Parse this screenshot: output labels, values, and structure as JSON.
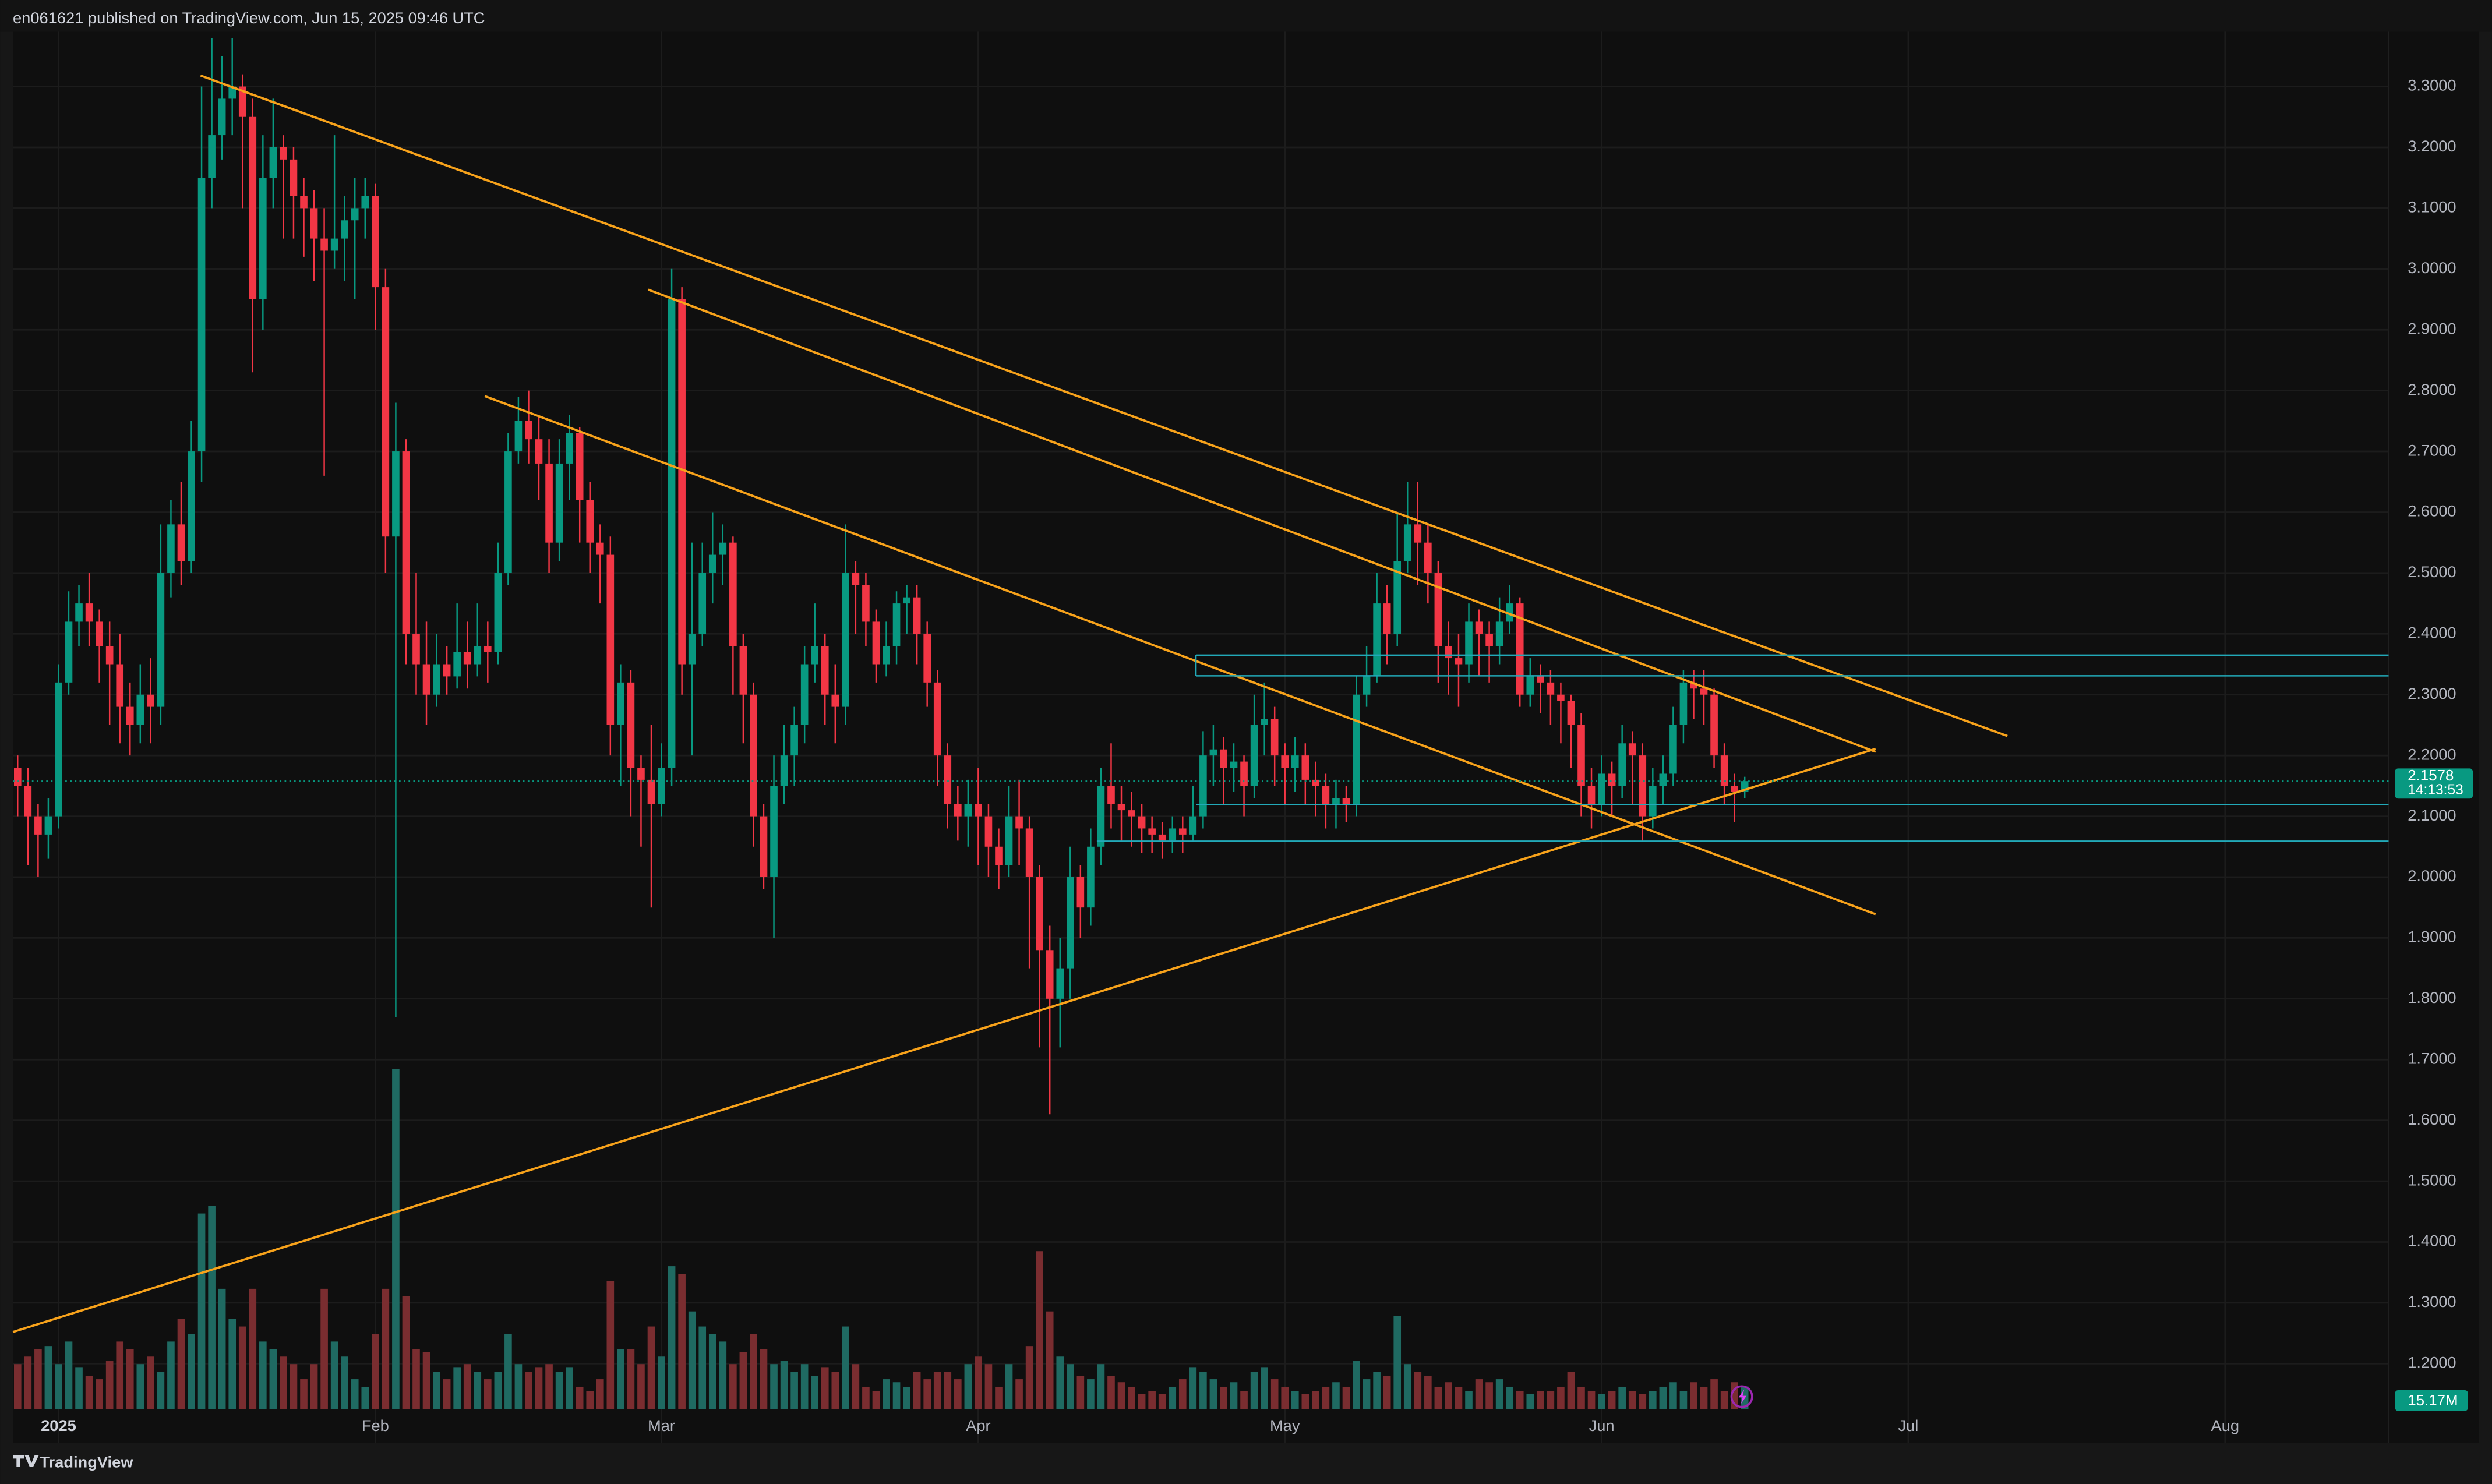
{
  "header": {
    "text": "en061621 published on TradingView.com, Jun 15, 2025 09:46 UTC"
  },
  "footer": {
    "brand": "TradingView"
  },
  "chart_data": {
    "type": "candlestick",
    "grid": true,
    "up_color": "#089981",
    "down_color": "#f23645",
    "xlim": [
      -0.47,
      232
    ],
    "ylim": [
      1.07,
      3.39
    ],
    "xticks": [
      {
        "value": 4,
        "label": "2025"
      },
      {
        "value": 35,
        "label": "Feb"
      },
      {
        "value": 63,
        "label": "Mar"
      },
      {
        "value": 94,
        "label": "Apr"
      },
      {
        "value": 124,
        "label": "May"
      },
      {
        "value": 155,
        "label": "Jun"
      },
      {
        "value": 185,
        "label": "Jul"
      },
      {
        "value": 216,
        "label": "Aug"
      }
    ],
    "yticks": [
      {
        "value": 1.2,
        "label": "1.2000"
      },
      {
        "value": 1.3,
        "label": "1.3000"
      },
      {
        "value": 1.4,
        "label": "1.4000"
      },
      {
        "value": 1.5,
        "label": "1.5000"
      },
      {
        "value": 1.6,
        "label": "1.6000"
      },
      {
        "value": 1.7,
        "label": "1.7000"
      },
      {
        "value": 1.8,
        "label": "1.8000"
      },
      {
        "value": 1.9,
        "label": "1.9000"
      },
      {
        "value": 2.0,
        "label": "2.0000"
      },
      {
        "value": 2.1,
        "label": "2.1000"
      },
      {
        "value": 2.2,
        "label": "2.2000"
      },
      {
        "value": 2.3,
        "label": "2.3000"
      },
      {
        "value": 2.4,
        "label": "2.4000"
      },
      {
        "value": 2.5,
        "label": "2.5000"
      },
      {
        "value": 2.6,
        "label": "2.6000"
      },
      {
        "value": 2.7,
        "label": "2.7000"
      },
      {
        "value": 2.8,
        "label": "2.8000"
      },
      {
        "value": 2.9,
        "label": "2.9000"
      },
      {
        "value": 3.0,
        "label": "3.0000"
      },
      {
        "value": 3.1,
        "label": "3.1000"
      },
      {
        "value": 3.2,
        "label": "3.2000"
      },
      {
        "value": 3.3,
        "label": "3.3000"
      }
    ],
    "open": [
      2.18,
      2.15,
      2.1,
      2.07,
      2.1,
      2.32,
      2.42,
      2.45,
      2.42,
      2.38,
      2.35,
      2.28,
      2.25,
      2.3,
      2.28,
      2.5,
      2.58,
      2.52,
      2.7,
      3.15,
      3.22,
      3.28,
      3.3,
      3.25,
      2.95,
      3.15,
      3.2,
      3.18,
      3.12,
      3.1,
      3.05,
      3.03,
      3.05,
      3.08,
      3.1,
      3.12,
      2.97,
      2.56,
      2.7,
      2.4,
      2.35,
      2.3,
      2.35,
      2.33,
      2.37,
      2.35,
      2.38,
      2.37,
      2.5,
      2.7,
      2.75,
      2.72,
      2.68,
      2.55,
      2.68,
      2.73,
      2.62,
      2.55,
      2.53,
      2.25,
      2.32,
      2.18,
      2.16,
      2.12,
      2.18,
      2.95,
      2.35,
      2.4,
      2.5,
      2.53,
      2.55,
      2.38,
      2.3,
      2.1,
      2.0,
      2.15,
      2.2,
      2.25,
      2.35,
      2.38,
      2.3,
      2.28,
      2.5,
      2.48,
      2.42,
      2.35,
      2.38,
      2.45,
      2.46,
      2.4,
      2.32,
      2.2,
      2.12,
      2.1,
      2.12,
      2.1,
      2.05,
      2.02,
      2.1,
      2.08,
      2.0,
      1.88,
      1.8,
      1.85,
      2.0,
      1.95,
      2.05,
      2.15,
      2.12,
      2.11,
      2.1,
      2.08,
      2.07,
      2.06,
      2.08,
      2.07,
      2.1,
      2.2,
      2.21,
      2.18,
      2.19,
      2.15,
      2.25,
      2.26,
      2.2,
      2.18,
      2.2,
      2.16,
      2.15,
      2.12,
      2.13,
      2.12,
      2.3,
      2.33,
      2.45,
      2.4,
      2.52,
      2.58,
      2.55,
      2.5,
      2.38,
      2.36,
      2.35,
      2.42,
      2.4,
      2.38,
      2.42,
      2.45,
      2.3,
      2.33,
      2.32,
      2.3,
      2.29,
      2.25,
      2.15,
      2.12,
      2.17,
      2.15,
      2.22,
      2.2,
      2.1,
      2.15,
      2.17,
      2.25,
      2.32,
      2.31,
      2.3,
      2.2,
      2.15,
      2.14
    ],
    "high": [
      2.2,
      2.18,
      2.12,
      2.13,
      2.35,
      2.47,
      2.48,
      2.5,
      2.44,
      2.42,
      2.4,
      2.32,
      2.35,
      2.36,
      2.58,
      2.62,
      2.65,
      2.75,
      3.3,
      3.38,
      3.35,
      3.38,
      3.32,
      3.28,
      3.22,
      3.28,
      3.22,
      3.2,
      3.15,
      3.13,
      3.1,
      3.22,
      3.12,
      3.15,
      3.15,
      3.14,
      3.0,
      2.78,
      2.72,
      2.5,
      2.42,
      2.4,
      2.38,
      2.45,
      2.42,
      2.45,
      2.42,
      2.55,
      2.73,
      2.79,
      2.8,
      2.76,
      2.72,
      2.72,
      2.76,
      2.74,
      2.65,
      2.58,
      2.56,
      2.35,
      2.34,
      2.2,
      2.25,
      2.22,
      3.0,
      2.97,
      2.55,
      2.55,
      2.6,
      2.58,
      2.56,
      2.4,
      2.32,
      2.12,
      2.2,
      2.25,
      2.28,
      2.38,
      2.45,
      2.4,
      2.35,
      2.58,
      2.52,
      2.5,
      2.44,
      2.42,
      2.47,
      2.48,
      2.48,
      2.42,
      2.34,
      2.22,
      2.15,
      2.16,
      2.18,
      2.12,
      2.08,
      2.15,
      2.16,
      2.1,
      2.02,
      1.92,
      1.9,
      2.05,
      2.02,
      2.08,
      2.18,
      2.22,
      2.15,
      2.14,
      2.12,
      2.1,
      2.09,
      2.1,
      2.1,
      2.15,
      2.24,
      2.25,
      2.23,
      2.22,
      2.2,
      2.3,
      2.32,
      2.28,
      2.22,
      2.23,
      2.22,
      2.19,
      2.17,
      2.16,
      2.15,
      2.33,
      2.38,
      2.5,
      2.48,
      2.6,
      2.65,
      2.65,
      2.58,
      2.52,
      2.42,
      2.4,
      2.45,
      2.44,
      2.42,
      2.46,
      2.48,
      2.46,
      2.36,
      2.35,
      2.34,
      2.32,
      2.3,
      2.27,
      2.18,
      2.2,
      2.19,
      2.25,
      2.24,
      2.22,
      2.18,
      2.2,
      2.28,
      2.34,
      2.34,
      2.34,
      2.31,
      2.22,
      2.17,
      2.165
    ],
    "low": [
      2.1,
      2.02,
      2.0,
      2.03,
      2.08,
      2.3,
      2.38,
      2.38,
      2.32,
      2.25,
      2.22,
      2.2,
      2.22,
      2.22,
      2.25,
      2.46,
      2.48,
      2.5,
      2.65,
      3.1,
      3.18,
      3.22,
      3.1,
      2.83,
      2.9,
      3.1,
      3.05,
      3.05,
      3.02,
      2.98,
      2.66,
      3.0,
      2.98,
      2.95,
      3.05,
      2.9,
      2.5,
      1.77,
      2.35,
      2.3,
      2.25,
      2.28,
      2.3,
      2.31,
      2.31,
      2.33,
      2.32,
      2.35,
      2.48,
      2.68,
      2.68,
      2.62,
      2.5,
      2.52,
      2.62,
      2.55,
      2.5,
      2.45,
      2.2,
      2.15,
      2.1,
      2.05,
      1.95,
      2.1,
      2.15,
      2.3,
      2.2,
      2.38,
      2.45,
      2.48,
      2.3,
      2.22,
      2.05,
      1.98,
      1.9,
      2.12,
      2.15,
      2.22,
      2.32,
      2.25,
      2.22,
      2.25,
      2.4,
      2.38,
      2.32,
      2.33,
      2.35,
      2.4,
      2.35,
      2.28,
      2.15,
      2.08,
      2.06,
      2.05,
      2.02,
      2.0,
      1.98,
      2.0,
      2.02,
      1.85,
      1.72,
      1.61,
      1.72,
      1.8,
      1.9,
      1.92,
      2.02,
      2.08,
      2.06,
      2.05,
      2.04,
      2.04,
      2.03,
      2.04,
      2.04,
      2.06,
      2.08,
      2.15,
      2.12,
      2.14,
      2.1,
      2.13,
      2.2,
      2.15,
      2.12,
      2.14,
      2.12,
      2.1,
      2.08,
      2.08,
      2.09,
      2.1,
      2.28,
      2.32,
      2.35,
      2.38,
      2.5,
      2.48,
      2.45,
      2.32,
      2.3,
      2.28,
      2.32,
      2.33,
      2.32,
      2.35,
      2.4,
      2.28,
      2.28,
      2.27,
      2.25,
      2.22,
      2.18,
      2.1,
      2.08,
      2.1,
      2.1,
      2.13,
      2.12,
      2.06,
      2.08,
      2.12,
      2.15,
      2.22,
      2.26,
      2.25,
      2.18,
      2.12,
      2.09,
      2.13
    ],
    "close": [
      2.15,
      2.1,
      2.07,
      2.1,
      2.32,
      2.42,
      2.45,
      2.42,
      2.38,
      2.35,
      2.28,
      2.25,
      2.3,
      2.28,
      2.5,
      2.58,
      2.52,
      2.7,
      3.15,
      3.22,
      3.28,
      3.3,
      3.25,
      2.95,
      3.15,
      3.2,
      3.18,
      3.12,
      3.1,
      3.05,
      3.03,
      3.05,
      3.08,
      3.1,
      3.12,
      2.97,
      2.56,
      2.7,
      2.4,
      2.35,
      2.3,
      2.35,
      2.33,
      2.37,
      2.35,
      2.38,
      2.37,
      2.5,
      2.7,
      2.75,
      2.72,
      2.68,
      2.55,
      2.68,
      2.73,
      2.62,
      2.55,
      2.53,
      2.25,
      2.32,
      2.18,
      2.16,
      2.12,
      2.18,
      2.95,
      2.35,
      2.4,
      2.5,
      2.53,
      2.55,
      2.38,
      2.3,
      2.1,
      2.0,
      2.15,
      2.2,
      2.25,
      2.35,
      2.38,
      2.3,
      2.28,
      2.5,
      2.48,
      2.42,
      2.35,
      2.38,
      2.45,
      2.46,
      2.4,
      2.32,
      2.2,
      2.12,
      2.1,
      2.12,
      2.1,
      2.05,
      2.02,
      2.1,
      2.08,
      2.0,
      1.88,
      1.8,
      1.85,
      2.0,
      1.95,
      2.05,
      2.15,
      2.12,
      2.11,
      2.1,
      2.08,
      2.07,
      2.06,
      2.08,
      2.07,
      2.1,
      2.2,
      2.21,
      2.18,
      2.19,
      2.15,
      2.25,
      2.26,
      2.2,
      2.18,
      2.2,
      2.16,
      2.15,
      2.12,
      2.13,
      2.12,
      2.3,
      2.33,
      2.45,
      2.4,
      2.52,
      2.58,
      2.55,
      2.5,
      2.38,
      2.36,
      2.35,
      2.42,
      2.4,
      2.38,
      2.42,
      2.45,
      2.3,
      2.33,
      2.32,
      2.3,
      2.29,
      2.25,
      2.15,
      2.12,
      2.17,
      2.15,
      2.22,
      2.2,
      2.1,
      2.15,
      2.17,
      2.25,
      2.32,
      2.31,
      2.3,
      2.2,
      2.15,
      2.14,
      2.1578
    ],
    "volume": {
      "ylim": [
        0,
        250
      ],
      "up_color": "#1f6a62",
      "down_color": "#7a2d30",
      "values": [
        30,
        35,
        40,
        42,
        30,
        45,
        28,
        22,
        20,
        32,
        45,
        40,
        30,
        35,
        25,
        45,
        60,
        50,
        130,
        135,
        80,
        60,
        55,
        80,
        45,
        40,
        35,
        30,
        20,
        30,
        80,
        45,
        35,
        20,
        15,
        50,
        80,
        226,
        75,
        40,
        38,
        25,
        20,
        28,
        30,
        25,
        20,
        25,
        50,
        30,
        25,
        28,
        30,
        25,
        28,
        15,
        12,
        20,
        85,
        40,
        40,
        30,
        55,
        35,
        95,
        90,
        65,
        55,
        50,
        45,
        30,
        38,
        50,
        40,
        30,
        32,
        25,
        30,
        22,
        28,
        25,
        55,
        30,
        15,
        12,
        20,
        18,
        15,
        25,
        20,
        25,
        25,
        20,
        30,
        35,
        30,
        15,
        30,
        20,
        42,
        105,
        65,
        35,
        30,
        22,
        20,
        30,
        22,
        18,
        15,
        10,
        12,
        10,
        15,
        20,
        28,
        25,
        20,
        15,
        18,
        12,
        25,
        28,
        20,
        15,
        12,
        10,
        12,
        15,
        18,
        15,
        32,
        20,
        25,
        22,
        62,
        30,
        25,
        22,
        15,
        18,
        15,
        12,
        20,
        18,
        20,
        15,
        12,
        10,
        12,
        12,
        15,
        25,
        15,
        12,
        10,
        12,
        15,
        12,
        10,
        12,
        15,
        18,
        12,
        18,
        15,
        20,
        12,
        18,
        15.17
      ],
      "last_label": "15.17M"
    },
    "last_price": {
      "value": 2.1578,
      "countdown": "14:13:53",
      "color": "#089981"
    },
    "drawings": [
      {
        "color": "#f7a21b",
        "points": [
          [
            17.9,
            3.318
          ],
          [
            194.7,
            2.232
          ]
        ]
      },
      {
        "color": "#f7a21b",
        "points": [
          [
            61.7,
            2.966
          ],
          [
            181.8,
            2.206
          ]
        ]
      },
      {
        "color": "#f7a21b",
        "points": [
          [
            45.7,
            2.791
          ],
          [
            181.8,
            1.939
          ]
        ]
      },
      {
        "color": "#f7a21b",
        "points": [
          [
            -0.47,
            1.252
          ],
          [
            181.8,
            2.211
          ]
        ]
      },
      {
        "color": "#22a9b8",
        "points": [
          [
            115.3,
            2.365
          ],
          [
            232,
            2.365
          ]
        ]
      },
      {
        "color": "#22a9b8",
        "points": [
          [
            115.3,
            2.331
          ],
          [
            232,
            2.331
          ]
        ]
      },
      {
        "color": "#22a9b8",
        "points": [
          [
            115.3,
            2.331
          ],
          [
            115.3,
            2.365
          ]
        ]
      },
      {
        "color": "#22a9b8",
        "points": [
          [
            115.3,
            2.119
          ],
          [
            232,
            2.119
          ]
        ]
      },
      {
        "color": "#22a9b8",
        "points": [
          [
            105.6,
            2.059
          ],
          [
            232,
            2.059
          ]
        ]
      }
    ]
  }
}
